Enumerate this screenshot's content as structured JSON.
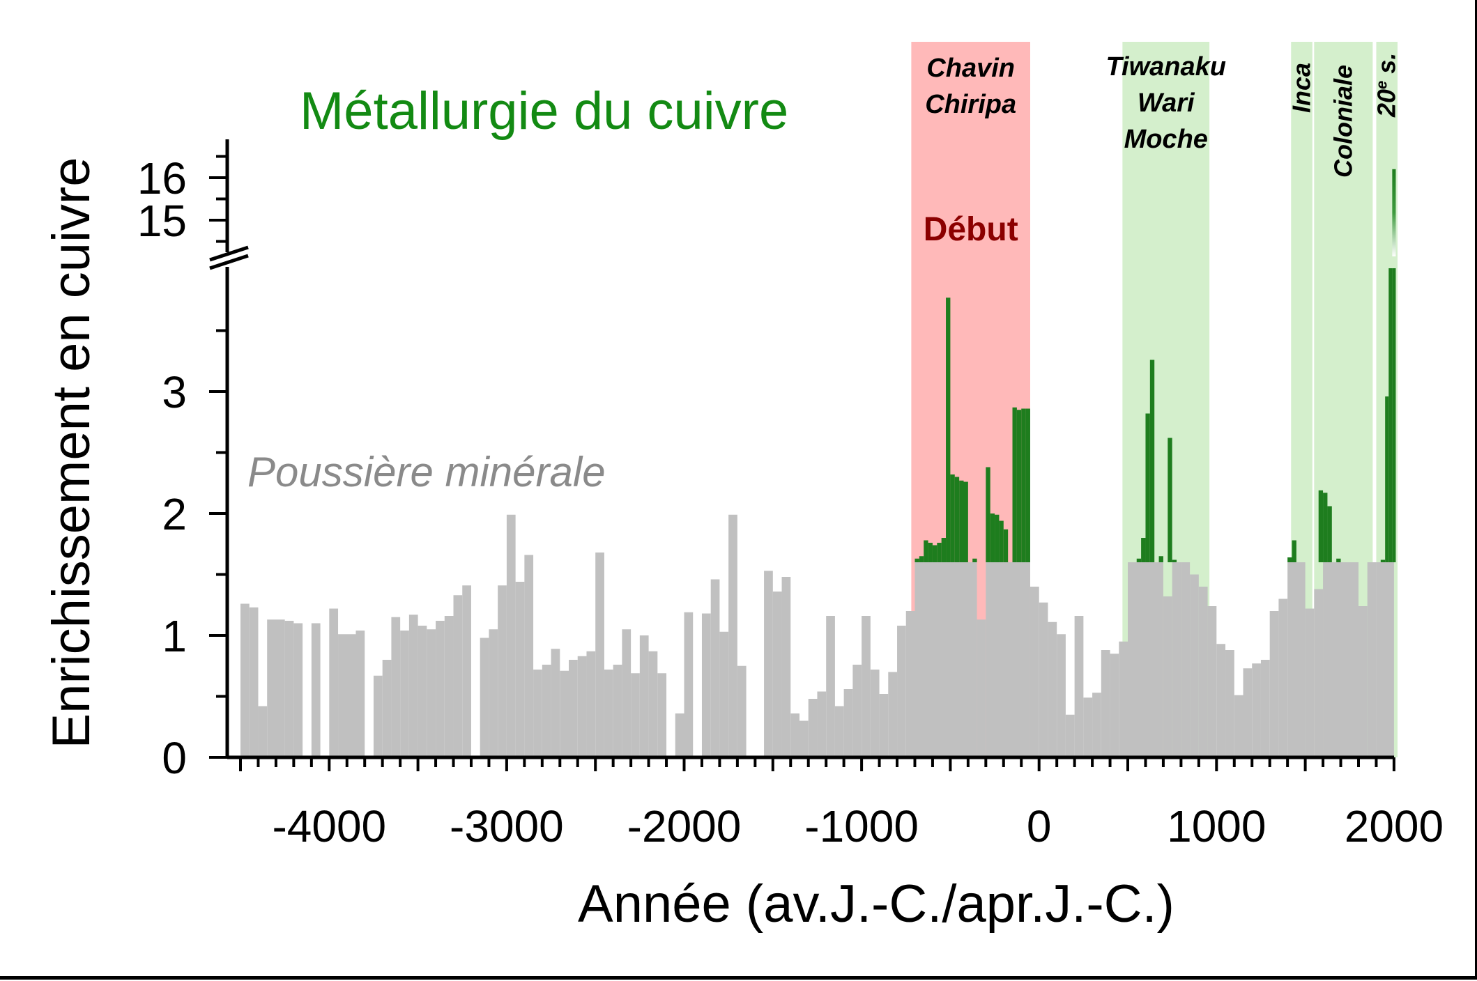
{
  "chart_data": {
    "type": "bar",
    "title": "Métallurgie du cuivre",
    "xlabel": "Année (av.J.-C./apr.J.-C.)",
    "ylabel": "Enrichissement en cuivre",
    "xlim": [
      -4500,
      2020
    ],
    "ylim_lower": [
      0,
      3.9
    ],
    "ylim_upper": [
      14.3,
      16.7
    ],
    "x_ticks": [
      -4000,
      -3000,
      -2000,
      -1000,
      0,
      1000,
      2000
    ],
    "y_tick_labels": [
      "0",
      "1",
      "2",
      "3",
      "15",
      "16"
    ],
    "dust_label": "Poussière minérale",
    "dust_baseline": 1.6,
    "colors": {
      "dust": "#c0c0c0",
      "copper": "#1e7d1e",
      "title": "#138a13",
      "start_band": "#ffb9b9",
      "culture_band": "#d4efcc",
      "debut_text": "#8b0000",
      "dust_label": "#8a8a8a"
    },
    "periods": [
      {
        "start": -720,
        "end": -50,
        "kind": "start",
        "labels": [
          "Chavin",
          "Chiripa"
        ],
        "extra": "Début"
      },
      {
        "start": 470,
        "end": 960,
        "kind": "culture",
        "labels": [
          "Tiwanaku",
          "Wari",
          "Moche"
        ]
      },
      {
        "start": 1420,
        "end": 1540,
        "kind": "culture",
        "labels": [
          "Inca"
        ],
        "vertical": true
      },
      {
        "start": 1550,
        "end": 1880,
        "kind": "culture",
        "labels": [
          "Coloniale"
        ],
        "vertical": true
      },
      {
        "start": 1900,
        "end": 2020,
        "kind": "culture",
        "labels": [
          "20",
          "e",
          " s."
        ],
        "vertical": true
      }
    ],
    "series": [
      {
        "values_note": "dust",
        "bars": [
          [
            -4500,
            -4450,
            1.26
          ],
          [
            -4450,
            -4400,
            1.23
          ],
          [
            -4400,
            -4350,
            0.42
          ],
          [
            -4350,
            -4250,
            1.13
          ],
          [
            -4250,
            -4200,
            1.12
          ],
          [
            -4200,
            -4150,
            1.1
          ],
          [
            -4100,
            -4050,
            1.1
          ],
          [
            -4000,
            -3950,
            1.22
          ],
          [
            -3950,
            -3850,
            1.01
          ],
          [
            -3850,
            -3800,
            1.04
          ],
          [
            -3750,
            -3700,
            0.67
          ],
          [
            -3700,
            -3650,
            0.8
          ],
          [
            -3650,
            -3600,
            1.15
          ],
          [
            -3600,
            -3550,
            1.04
          ],
          [
            -3550,
            -3500,
            1.17
          ],
          [
            -3500,
            -3450,
            1.08
          ],
          [
            -3450,
            -3400,
            1.05
          ],
          [
            -3400,
            -3350,
            1.12
          ],
          [
            -3350,
            -3300,
            1.16
          ],
          [
            -3300,
            -3250,
            1.33
          ],
          [
            -3250,
            -3200,
            1.41
          ],
          [
            -3150,
            -3100,
            0.98
          ],
          [
            -3100,
            -3050,
            1.05
          ],
          [
            -3050,
            -3000,
            1.41
          ],
          [
            -3000,
            -2950,
            1.99
          ],
          [
            -2950,
            -2900,
            1.44
          ],
          [
            -2900,
            -2850,
            1.66
          ],
          [
            -2850,
            -2800,
            0.72
          ],
          [
            -2800,
            -2750,
            0.76
          ],
          [
            -2750,
            -2700,
            0.89
          ],
          [
            -2700,
            -2650,
            0.71
          ],
          [
            -2650,
            -2600,
            0.8
          ],
          [
            -2600,
            -2550,
            0.83
          ],
          [
            -2550,
            -2500,
            0.87
          ],
          [
            -2500,
            -2450,
            1.68
          ],
          [
            -2450,
            -2400,
            0.72
          ],
          [
            -2400,
            -2350,
            0.76
          ],
          [
            -2350,
            -2300,
            1.05
          ],
          [
            -2300,
            -2250,
            0.69
          ],
          [
            -2250,
            -2200,
            1.0
          ],
          [
            -2200,
            -2150,
            0.87
          ],
          [
            -2150,
            -2100,
            0.69
          ],
          [
            -2050,
            -2000,
            0.36
          ],
          [
            -2000,
            -1950,
            1.19
          ],
          [
            -1900,
            -1850,
            1.18
          ],
          [
            -1850,
            -1800,
            1.46
          ],
          [
            -1800,
            -1750,
            1.03
          ],
          [
            -1750,
            -1700,
            1.99
          ],
          [
            -1700,
            -1650,
            0.75
          ],
          [
            -1550,
            -1500,
            1.53
          ],
          [
            -1500,
            -1450,
            1.36
          ],
          [
            -1450,
            -1400,
            1.48
          ],
          [
            -1400,
            -1350,
            0.36
          ],
          [
            -1350,
            -1300,
            0.3
          ],
          [
            -1300,
            -1250,
            0.48
          ],
          [
            -1250,
            -1200,
            0.54
          ],
          [
            -1200,
            -1150,
            1.16
          ],
          [
            -1150,
            -1100,
            0.42
          ],
          [
            -1100,
            -1050,
            0.56
          ],
          [
            -1050,
            -1000,
            0.76
          ],
          [
            -1000,
            -950,
            1.16
          ],
          [
            -950,
            -900,
            0.72
          ],
          [
            -900,
            -850,
            0.52
          ],
          [
            -850,
            -800,
            0.7
          ],
          [
            -800,
            -750,
            1.08
          ],
          [
            -750,
            -700,
            1.2
          ],
          [
            -700,
            -350,
            1.6
          ],
          [
            -350,
            -300,
            1.13
          ],
          [
            -300,
            -50,
            1.6
          ],
          [
            -50,
            0,
            1.4
          ],
          [
            0,
            50,
            1.27
          ],
          [
            50,
            100,
            1.11
          ],
          [
            100,
            150,
            1.01
          ],
          [
            150,
            200,
            0.35
          ],
          [
            200,
            250,
            1.16
          ],
          [
            250,
            300,
            0.49
          ],
          [
            300,
            350,
            0.53
          ],
          [
            350,
            400,
            0.88
          ],
          [
            400,
            450,
            0.85
          ],
          [
            450,
            500,
            0.95
          ],
          [
            500,
            700,
            1.6
          ],
          [
            700,
            750,
            1.32
          ],
          [
            750,
            800,
            1.6
          ],
          [
            800,
            850,
            1.6
          ],
          [
            850,
            900,
            1.5
          ],
          [
            900,
            950,
            1.4
          ],
          [
            950,
            1000,
            1.24
          ],
          [
            1000,
            1050,
            0.93
          ],
          [
            1050,
            1100,
            0.88
          ],
          [
            1100,
            1150,
            0.51
          ],
          [
            1150,
            1200,
            0.73
          ],
          [
            1200,
            1250,
            0.77
          ],
          [
            1250,
            1300,
            0.8
          ],
          [
            1300,
            1350,
            1.2
          ],
          [
            1350,
            1400,
            1.3
          ],
          [
            1400,
            1500,
            1.6
          ],
          [
            1500,
            1550,
            1.22
          ],
          [
            1550,
            1600,
            1.38
          ],
          [
            1600,
            1800,
            1.6
          ],
          [
            1800,
            1850,
            1.24
          ],
          [
            1850,
            1900,
            1.6
          ],
          [
            1900,
            2000,
            1.6
          ]
        ]
      },
      {
        "values_note": "copper",
        "bars": [
          [
            -700,
            -675,
            1.63
          ],
          [
            -675,
            -650,
            1.65
          ],
          [
            -650,
            -625,
            1.78
          ],
          [
            -625,
            -600,
            1.76
          ],
          [
            -600,
            -575,
            1.74
          ],
          [
            -575,
            -550,
            1.76
          ],
          [
            -550,
            -525,
            1.8
          ],
          [
            -525,
            -500,
            3.77
          ],
          [
            -500,
            -475,
            2.32
          ],
          [
            -475,
            -450,
            2.3
          ],
          [
            -450,
            -425,
            2.27
          ],
          [
            -425,
            -400,
            2.26
          ],
          [
            -375,
            -350,
            1.63
          ],
          [
            -300,
            -275,
            2.38
          ],
          [
            -275,
            -250,
            2.0
          ],
          [
            -250,
            -225,
            1.99
          ],
          [
            -225,
            -200,
            1.94
          ],
          [
            -200,
            -175,
            1.87
          ],
          [
            -150,
            -125,
            2.87
          ],
          [
            -125,
            -100,
            2.85
          ],
          [
            -100,
            -75,
            2.86
          ],
          [
            -75,
            -50,
            2.86
          ],
          [
            550,
            575,
            1.63
          ],
          [
            575,
            600,
            1.8
          ],
          [
            600,
            625,
            2.82
          ],
          [
            625,
            650,
            3.26
          ],
          [
            675,
            700,
            1.65
          ],
          [
            725,
            750,
            2.62
          ],
          [
            750,
            775,
            1.62
          ],
          [
            1400,
            1425,
            1.64
          ],
          [
            1425,
            1450,
            1.78
          ],
          [
            1575,
            1600,
            2.19
          ],
          [
            1600,
            1625,
            2.17
          ],
          [
            1625,
            1650,
            2.06
          ],
          [
            1675,
            1700,
            1.63
          ],
          [
            1925,
            1950,
            1.62
          ],
          [
            1950,
            1970,
            2.96
          ],
          [
            1970,
            1990,
            4.1
          ],
          [
            1990,
            2010,
            16.2
          ]
        ]
      }
    ]
  }
}
